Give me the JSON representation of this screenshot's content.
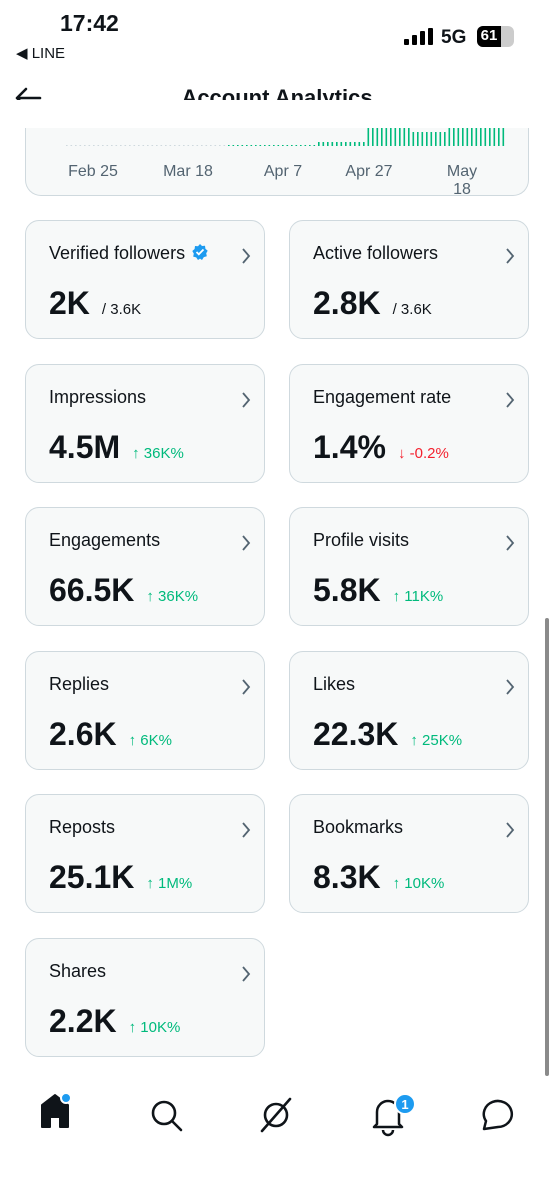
{
  "status_bar": {
    "time": "17:42",
    "back_app": "◀ LINE",
    "network": "5G",
    "battery": "61"
  },
  "header": {
    "title": "Account Analytics"
  },
  "chart": {
    "x_labels": [
      "Feb 25",
      "Mar 18",
      "Apr 7",
      "Apr 27",
      "May 18"
    ]
  },
  "cards": [
    {
      "title": "Verified followers",
      "verified": true,
      "value": "2K",
      "total": "/ 3.6K"
    },
    {
      "title": "Active followers",
      "value": "2.8K",
      "total": "/ 3.6K"
    },
    {
      "title": "Impressions",
      "value": "4.5M",
      "change": "↑ 36K%",
      "change_color": "#00ba7c"
    },
    {
      "title": "Engagement rate",
      "value": "1.4%",
      "change": "↓ -0.2%",
      "change_color": "#f4212e"
    },
    {
      "title": "Engagements",
      "value": "66.5K",
      "change": "↑ 36K%",
      "change_color": "#00ba7c"
    },
    {
      "title": "Profile visits",
      "value": "5.8K",
      "change": "↑ 11K%",
      "change_color": "#00ba7c"
    },
    {
      "title": "Replies",
      "value": "2.6K",
      "change": "↑ 6K%",
      "change_color": "#00ba7c"
    },
    {
      "title": "Likes",
      "value": "22.3K",
      "change": "↑ 25K%",
      "change_color": "#00ba7c"
    },
    {
      "title": "Reposts",
      "value": "25.1K",
      "change": "↑ 1M%",
      "change_color": "#00ba7c"
    },
    {
      "title": "Bookmarks",
      "value": "8.3K",
      "change": "↑ 10K%",
      "change_color": "#00ba7c"
    },
    {
      "title": "Shares",
      "value": "2.2K",
      "change": "↑ 10K%",
      "change_color": "#00ba7c"
    }
  ],
  "nav": {
    "notification_badge": "1"
  }
}
